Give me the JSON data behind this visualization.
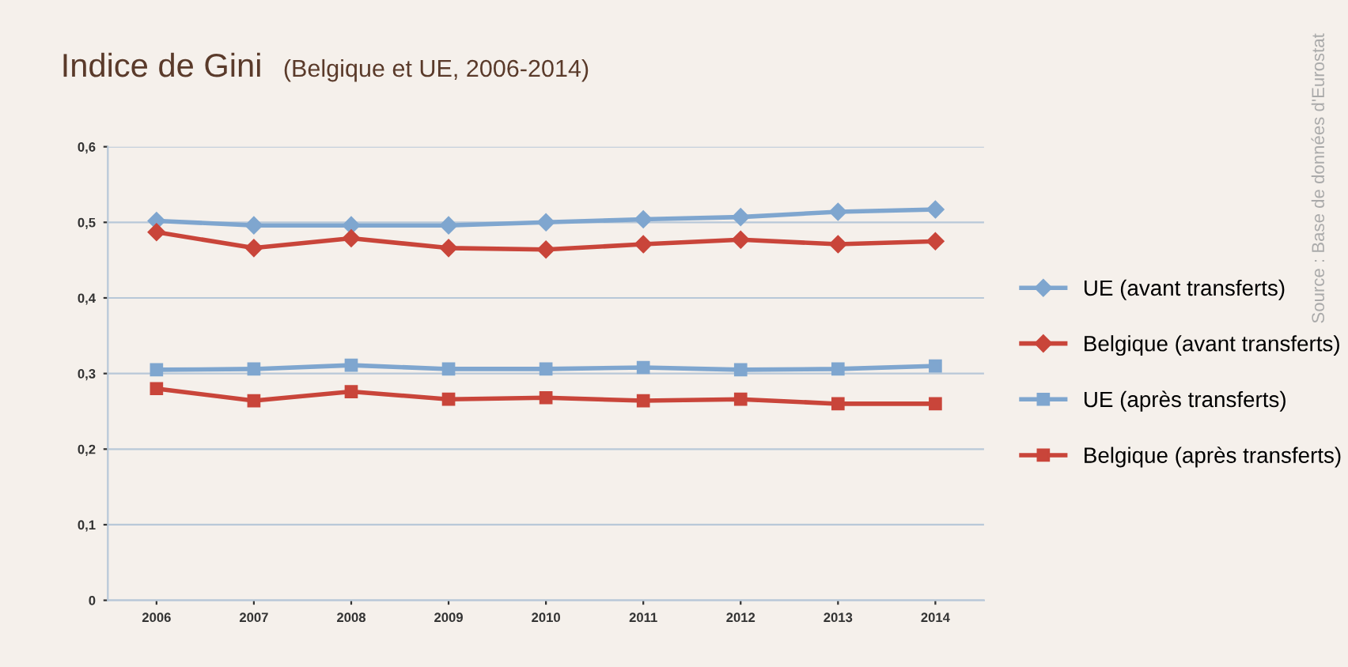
{
  "chart_data": {
    "type": "line",
    "title": "Indice de Gini",
    "subtitle": "(Belgique et UE, 2006-2014)",
    "annotations": [
      "Source : Base de données d'Eurostat"
    ],
    "categories": [
      "2006",
      "2007",
      "2008",
      "2009",
      "2010",
      "2011",
      "2012",
      "2013",
      "2014"
    ],
    "series": [
      {
        "name": "UE (avant transferts)",
        "color": "#7fa6cf",
        "marker": "diamond",
        "values": [
          0.502,
          0.496,
          0.496,
          0.496,
          0.5,
          0.504,
          0.507,
          0.514,
          0.517
        ]
      },
      {
        "name": "Belgique (avant transferts)",
        "color": "#c9453a",
        "marker": "diamond",
        "values": [
          0.487,
          0.466,
          0.479,
          0.466,
          0.464,
          0.471,
          0.477,
          0.471,
          0.475
        ]
      },
      {
        "name": "UE (après transferts)",
        "color": "#7fa6cf",
        "marker": "square",
        "values": [
          0.305,
          0.306,
          0.311,
          0.306,
          0.306,
          0.308,
          0.305,
          0.306,
          0.31
        ]
      },
      {
        "name": "Belgique (après transferts)",
        "color": "#c9453a",
        "marker": "square",
        "values": [
          0.28,
          0.264,
          0.276,
          0.266,
          0.268,
          0.264,
          0.266,
          0.26,
          0.26
        ]
      }
    ],
    "ylim": [
      0,
      0.6
    ],
    "yticks": [
      0,
      {
        "value": 0.1,
        "label": "0,1"
      },
      {
        "value": 0.2,
        "label": "0,2"
      },
      {
        "value": 0.3,
        "label": "0,3"
      },
      {
        "value": 0.4,
        "label": "0,4"
      },
      {
        "value": 0.5,
        "label": "0,5"
      },
      {
        "value": 0.6,
        "label": "0,6"
      }
    ],
    "grid": "y",
    "legend": "right",
    "line_style": "solid"
  }
}
